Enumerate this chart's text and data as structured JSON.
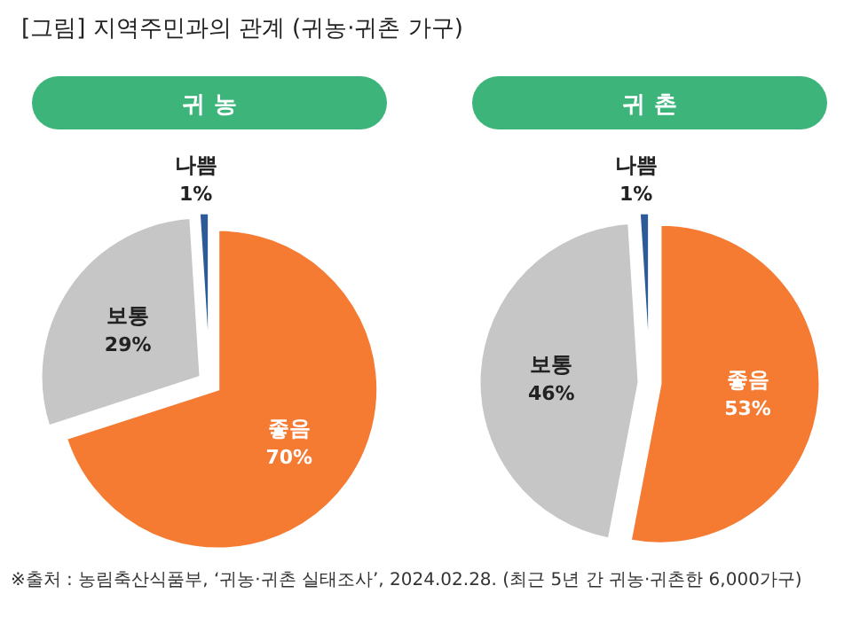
{
  "chart_data": [
    {
      "type": "pie",
      "title": "[그림] 지역주민과의 관계 (귀농·귀촌 가구)",
      "subtitle": "귀 농",
      "categories": [
        "좋음",
        "보통",
        "나쁨"
      ],
      "values": [
        70,
        29,
        1
      ],
      "colors": [
        "#f57a32",
        "#c6c6c6",
        "#2d5b98"
      ],
      "value_labels": [
        "70%",
        "29%",
        "1%"
      ]
    },
    {
      "type": "pie",
      "subtitle": "귀 촌",
      "categories": [
        "좋음",
        "보통",
        "나쁨"
      ],
      "values": [
        53,
        46,
        1
      ],
      "colors": [
        "#f57a32",
        "#c6c6c6",
        "#2d5b98"
      ],
      "value_labels": [
        "53%",
        "46%",
        "1%"
      ],
      "annotations": [
        "※출처 : 농림축산식품부, ‘귀농·귀촌 실태조사’, 2024.02.28. (최근 5년 간 귀농·귀촌한 6,000가구)"
      ]
    }
  ]
}
